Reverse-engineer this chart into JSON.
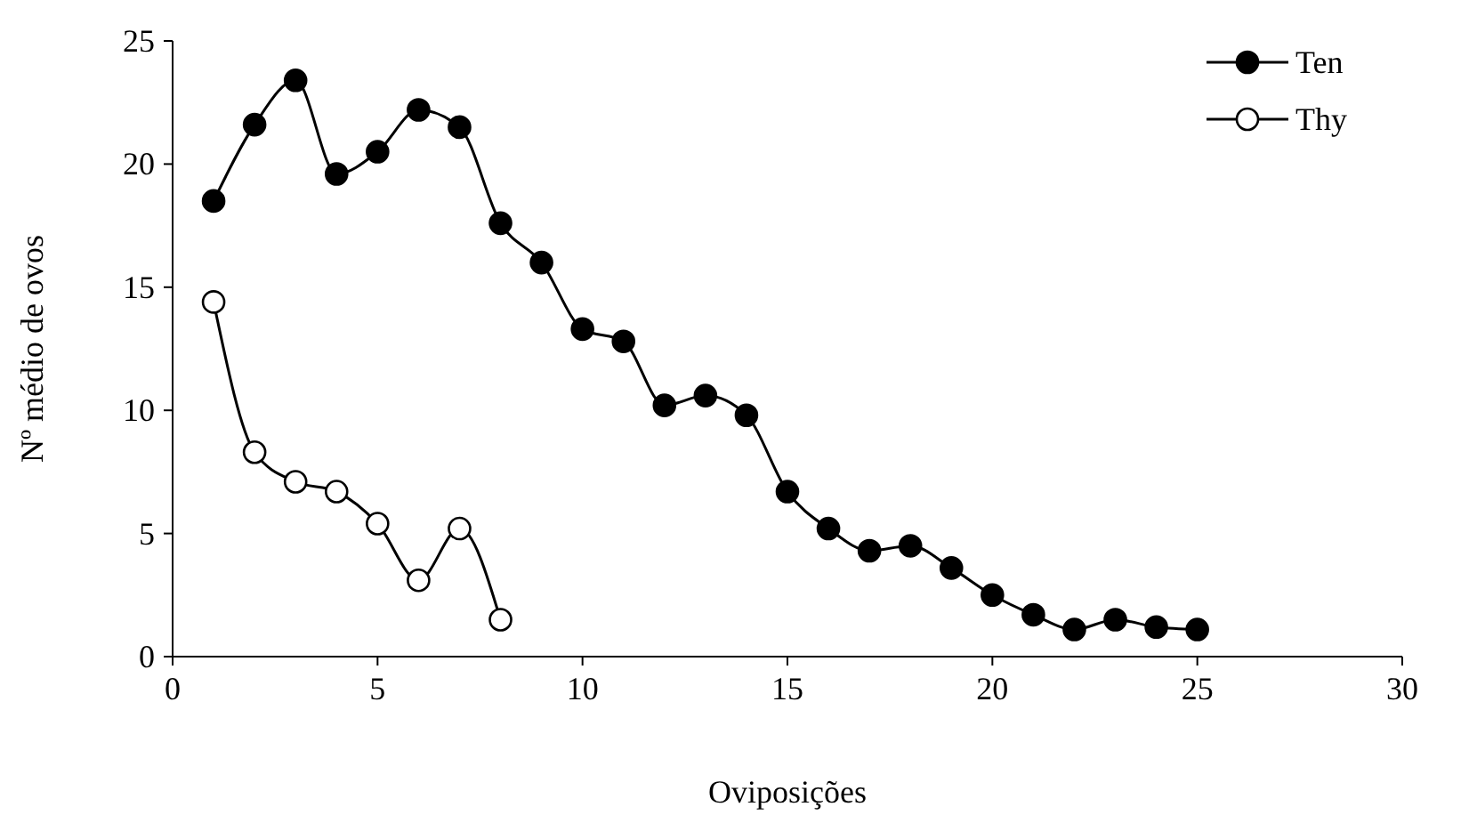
{
  "chart_data": {
    "type": "line",
    "xlabel": "Oviposições",
    "ylabel": "Nº médio de ovos",
    "xlim": [
      0,
      30
    ],
    "xticks": [
      0,
      5,
      10,
      15,
      20,
      25,
      30
    ],
    "ylim": [
      0,
      25
    ],
    "yticks": [
      0,
      5,
      10,
      15,
      20,
      25
    ],
    "legend": "top right",
    "grid": false,
    "marker": "circle",
    "line_style": "solid",
    "series": [
      {
        "name": "Ten",
        "color": "#000000",
        "x": [
          1,
          2,
          3,
          4,
          5,
          6,
          7,
          8,
          9,
          10,
          11,
          12,
          13,
          14,
          15,
          16,
          17,
          18,
          19,
          20,
          21,
          22,
          23,
          24,
          25
        ],
        "values": [
          18.5,
          21.6,
          23.4,
          19.6,
          20.5,
          22.2,
          21.5,
          17.6,
          16.0,
          13.3,
          12.8,
          10.2,
          10.6,
          9.8,
          6.7,
          5.2,
          4.3,
          4.5,
          3.6,
          2.5,
          1.7,
          1.1,
          1.5,
          1.2,
          1.1
        ]
      },
      {
        "name": "Thy",
        "color": "#ffffff",
        "x": [
          1,
          2,
          3,
          4,
          5,
          6,
          7,
          8
        ],
        "values": [
          14.4,
          8.3,
          7.1,
          6.7,
          5.4,
          3.1,
          5.2,
          1.5
        ]
      }
    ]
  }
}
